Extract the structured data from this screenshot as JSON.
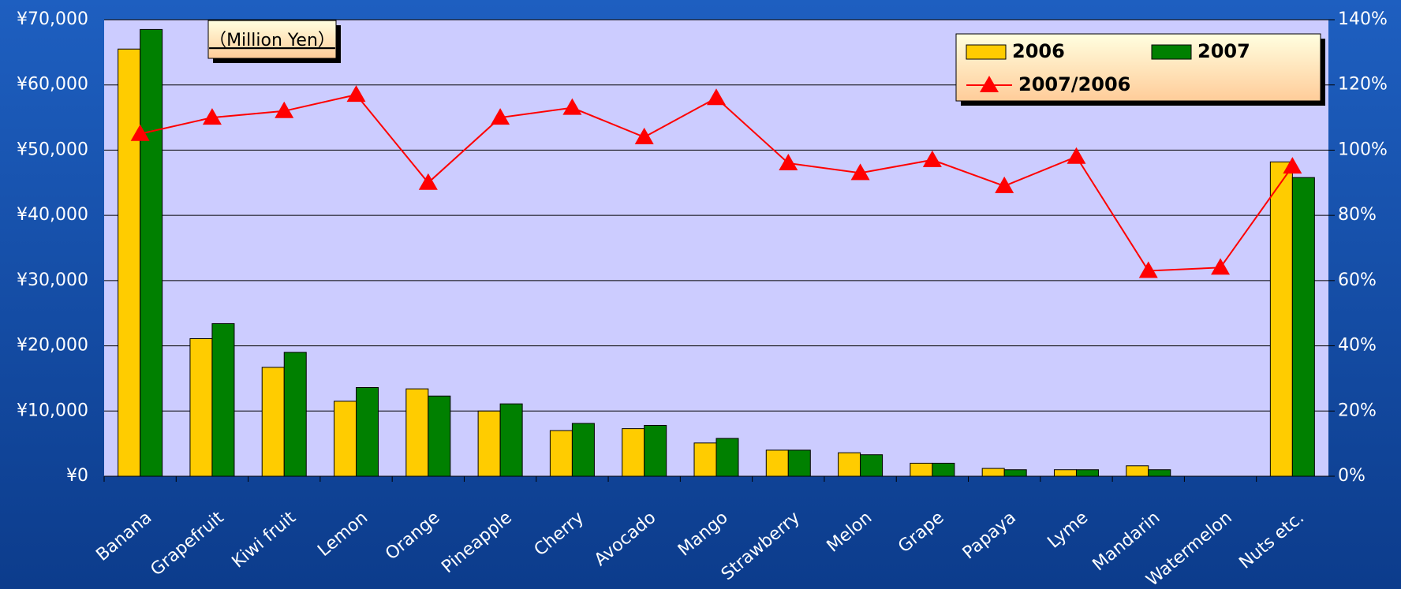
{
  "chart_data": {
    "type": "bar_line",
    "annotation": "（Million Yen）",
    "categories": [
      "Banana",
      "Grapefruit",
      "Kiwi fruit",
      "Lemon",
      "Orange",
      "Pineapple",
      "Cherry",
      "Avocado",
      "Mango",
      "Strawberry",
      "Melon",
      "Grape",
      "Papaya",
      "Lyme",
      "Mandarin",
      "Watermelon",
      "Nuts etc."
    ],
    "series": [
      {
        "name": "2006",
        "type": "bar",
        "color": "#ffcc00",
        "values": [
          65500,
          21100,
          16700,
          11500,
          13400,
          10000,
          7000,
          7300,
          5100,
          4000,
          3600,
          2000,
          1200,
          1000,
          1600,
          0,
          48200
        ]
      },
      {
        "name": "2007",
        "type": "bar",
        "color": "#008000",
        "values": [
          68500,
          23400,
          19000,
          13600,
          12300,
          11100,
          8100,
          7800,
          5800,
          4000,
          3300,
          2000,
          1000,
          1000,
          1000,
          0,
          45800
        ]
      },
      {
        "name": "2007/2006",
        "type": "line",
        "axis": "y2",
        "color": "#ff0000",
        "values": [
          105,
          110,
          112,
          117,
          90,
          110,
          113,
          104,
          116,
          96,
          93,
          97,
          89,
          98,
          63,
          64,
          95
        ]
      }
    ],
    "ylim": [
      0,
      70000
    ],
    "yticks": [
      {
        "value": 0,
        "label": "¥0"
      },
      {
        "value": 10000,
        "label": "¥10,000"
      },
      {
        "value": 20000,
        "label": "¥20,000"
      },
      {
        "value": 30000,
        "label": "¥30,000"
      },
      {
        "value": 40000,
        "label": "¥40,000"
      },
      {
        "value": 50000,
        "label": "¥50,000"
      },
      {
        "value": 60000,
        "label": "¥60,000"
      },
      {
        "value": 70000,
        "label": "¥70,000"
      }
    ],
    "y2lim": [
      0,
      140
    ],
    "y2ticks": [
      {
        "value": 0,
        "label": "0%"
      },
      {
        "value": 20,
        "label": "20%"
      },
      {
        "value": 40,
        "label": "40%"
      },
      {
        "value": 60,
        "label": "60%"
      },
      {
        "value": 80,
        "label": "80%"
      },
      {
        "value": 100,
        "label": "100%"
      },
      {
        "value": 120,
        "label": "120%"
      },
      {
        "value": 140,
        "label": "140%"
      }
    ],
    "grid": true,
    "legend": "upper right"
  }
}
